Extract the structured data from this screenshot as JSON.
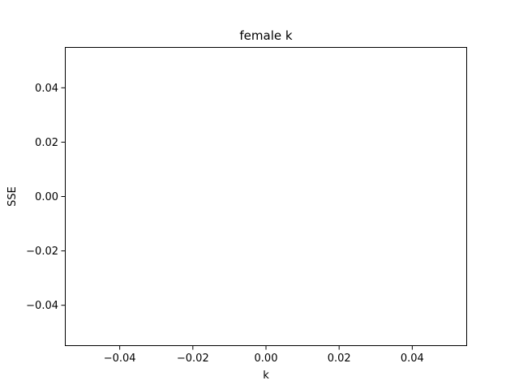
{
  "chart_data": {
    "type": "line",
    "title": "female k",
    "xlabel": "k",
    "ylabel": "SSE",
    "xlim": [
      -0.055,
      0.055
    ],
    "ylim": [
      -0.055,
      0.055
    ],
    "xticks": [
      -0.04,
      -0.02,
      0.0,
      0.02,
      0.04
    ],
    "yticks": [
      -0.04,
      -0.02,
      0.0,
      0.02,
      0.04
    ],
    "xtick_labels": [
      "−0.04",
      "−0.02",
      "0.00",
      "0.02",
      "0.04"
    ],
    "ytick_labels": [
      "−0.04",
      "−0.02",
      "0.00",
      "0.02",
      "0.04"
    ],
    "grid": false,
    "series": [
      {
        "x": [],
        "y": []
      }
    ]
  }
}
